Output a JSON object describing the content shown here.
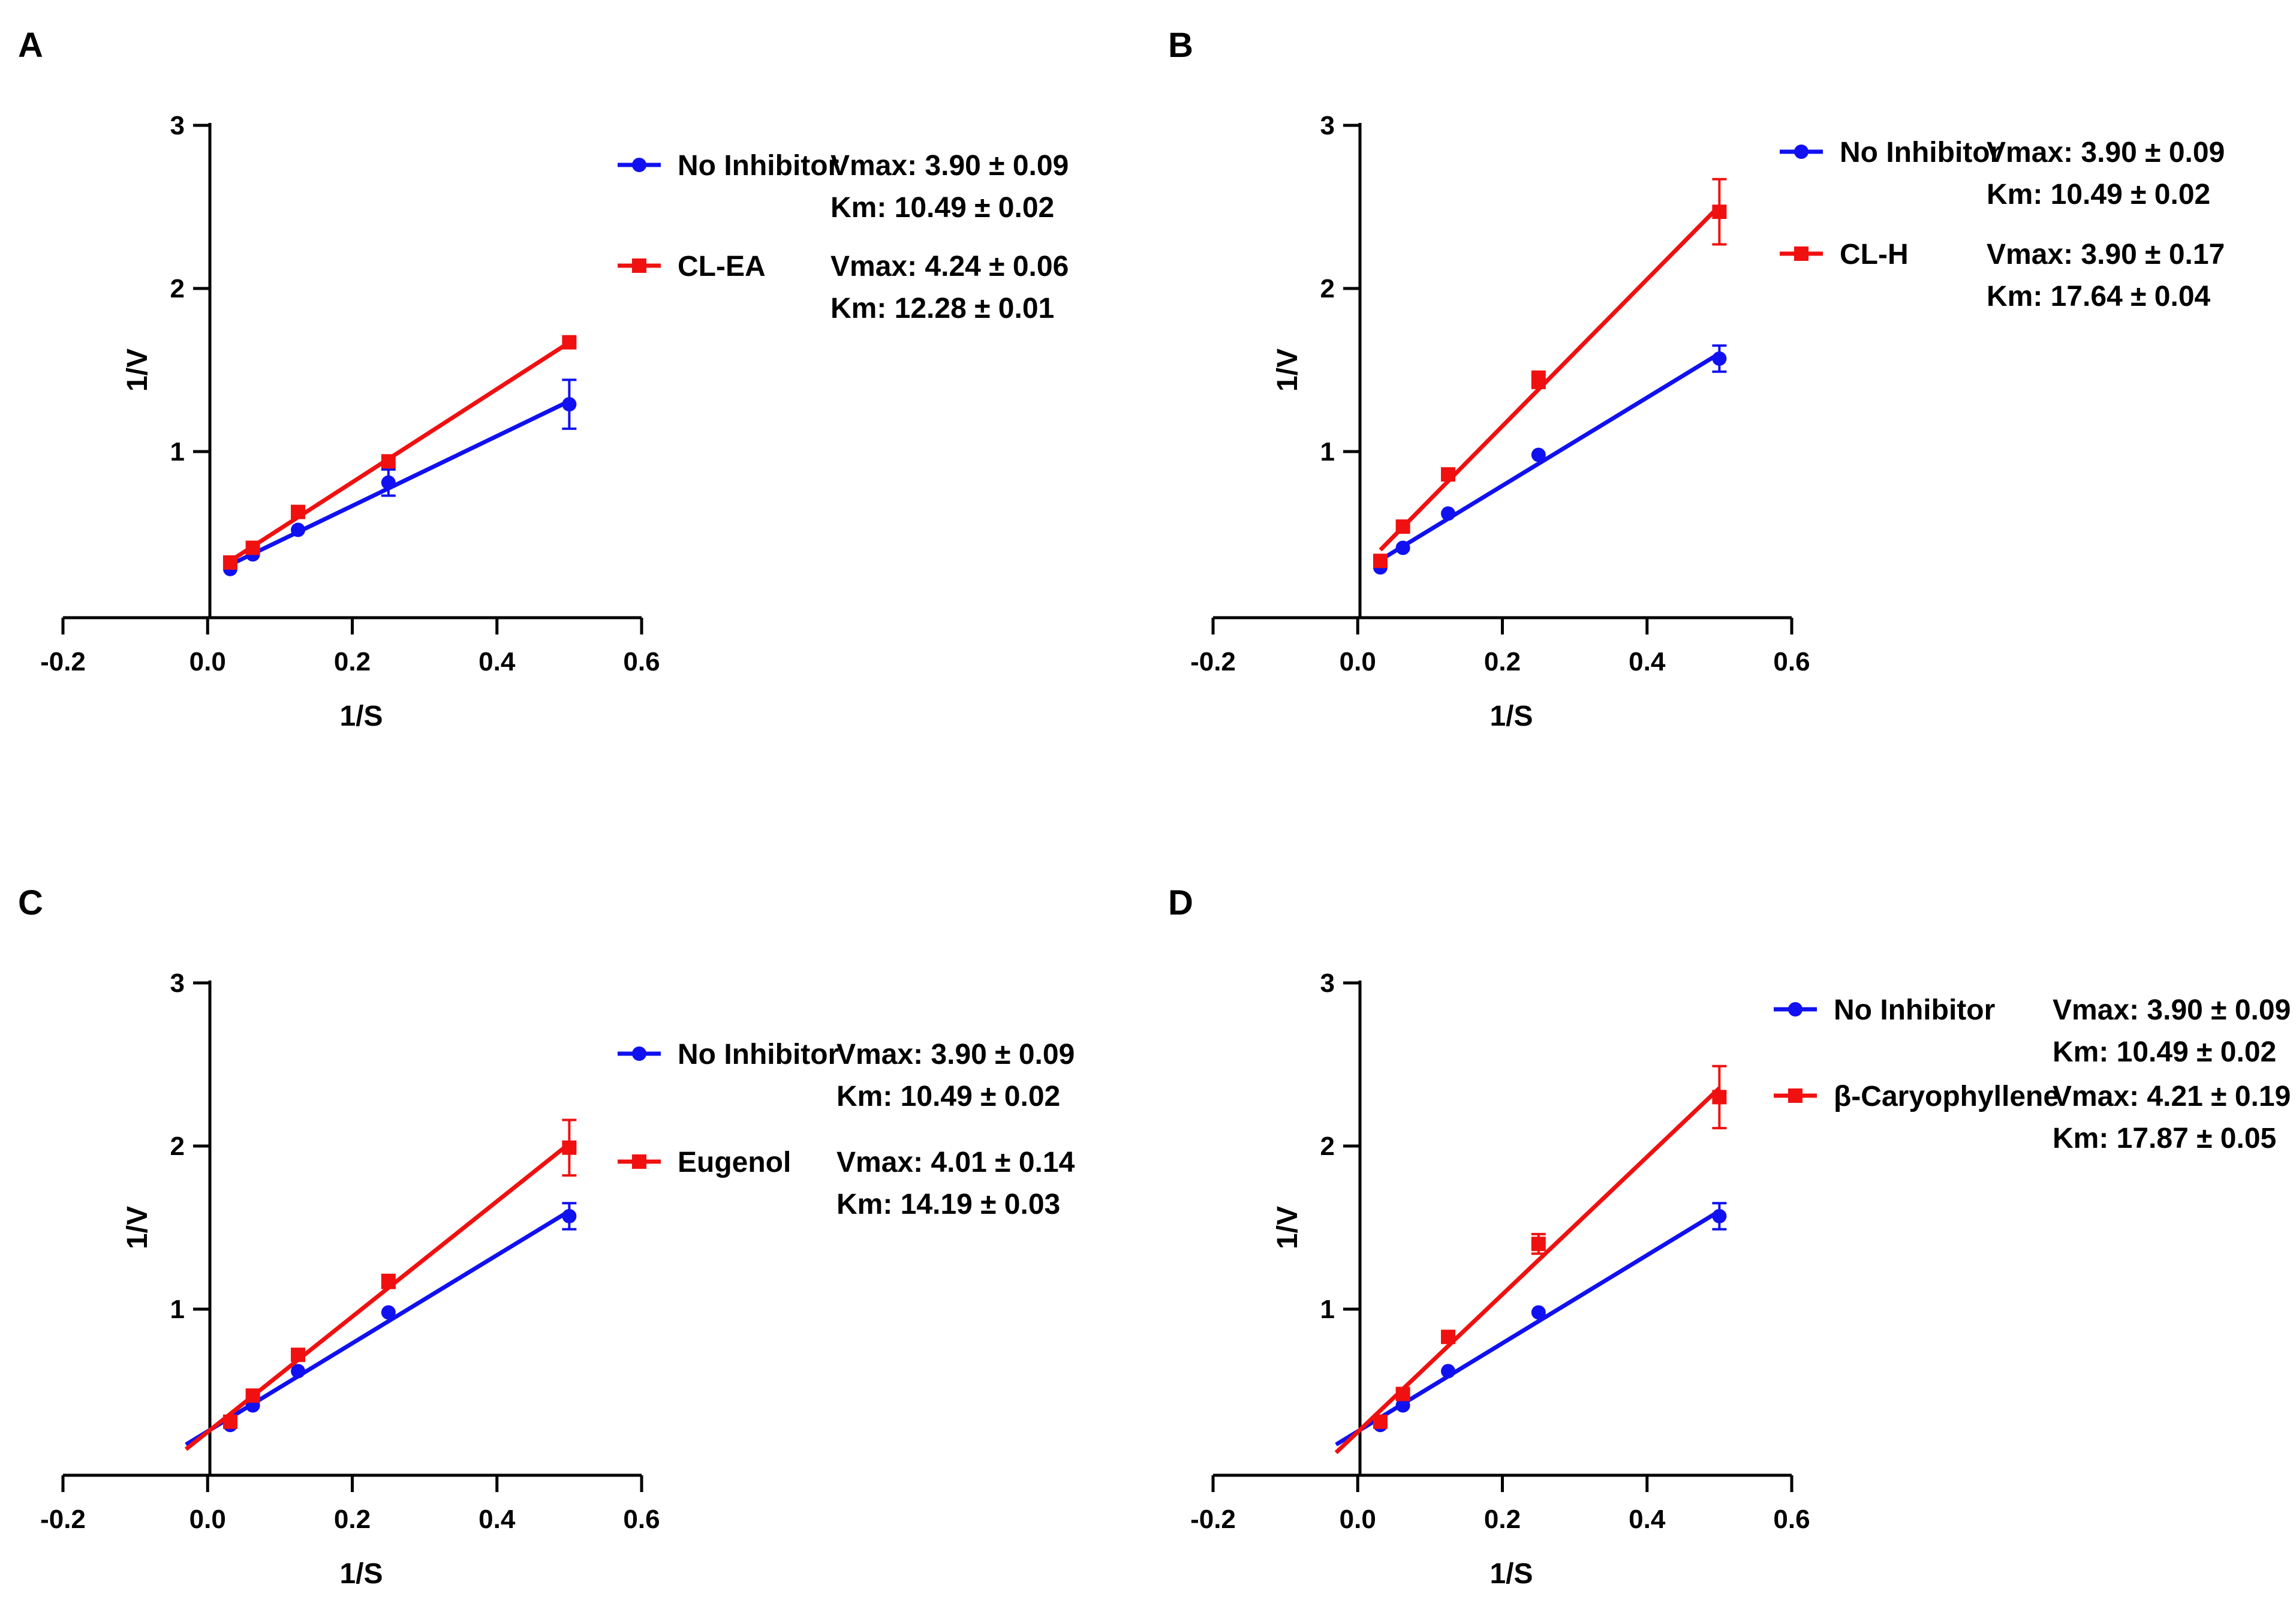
{
  "colors": {
    "no_inhibitor": "#1010f0",
    "inhibitor": "#f01010",
    "axis": "#000000"
  },
  "chart_data": [
    {
      "panel": "A",
      "type": "scatter",
      "xlabel": "1/S",
      "ylabel": "1/V",
      "xlim": [
        -0.2,
        0.6
      ],
      "ylim": [
        0,
        3
      ],
      "xticks": [
        "-0.2",
        "0.0",
        "0.2",
        "0.4",
        "0.6"
      ],
      "yticks": [
        "1",
        "2",
        "3"
      ],
      "series": [
        {
          "name": "No Inhibitor",
          "color_key": "no_inhibitor",
          "marker": "circle",
          "x": [
            0.03125,
            0.0625,
            0.125,
            0.25,
            0.5
          ],
          "y": [
            0.28,
            0.37,
            0.52,
            0.81,
            1.29
          ],
          "err": [
            0.02,
            0.02,
            0.03,
            0.08,
            0.15
          ],
          "fit_x": [
            0.03125,
            0.5
          ],
          "vmax_text": "Vmax: 3.90 ± 0.09",
          "km_text": "Km: 10.49 ± 0.02"
        },
        {
          "name": "CL-EA",
          "color_key": "inhibitor",
          "marker": "square",
          "x": [
            0.03125,
            0.0625,
            0.125,
            0.25,
            0.5
          ],
          "y": [
            0.32,
            0.41,
            0.63,
            0.94,
            1.67
          ],
          "err": [
            0.02,
            0.02,
            0.03,
            0.03,
            0.03
          ],
          "fit_x": [
            0.03125,
            0.5
          ],
          "vmax_text": "Vmax: 4.24 ± 0.06",
          "km_text": "Km: 12.28 ± 0.01"
        }
      ]
    },
    {
      "panel": "B",
      "type": "scatter",
      "xlabel": "1/S",
      "ylabel": "1/V",
      "xlim": [
        -0.2,
        0.6
      ],
      "ylim": [
        0,
        3
      ],
      "xticks": [
        "-0.2",
        "0.0",
        "0.2",
        "0.4",
        "0.6"
      ],
      "yticks": [
        "1",
        "2",
        "3"
      ],
      "series": [
        {
          "name": "No Inhibitor",
          "color_key": "no_inhibitor",
          "marker": "circle",
          "x": [
            0.03125,
            0.0625,
            0.125,
            0.25,
            0.5
          ],
          "y": [
            0.29,
            0.41,
            0.62,
            0.98,
            1.57
          ],
          "err": [
            0.02,
            0.02,
            0.02,
            0.02,
            0.08
          ],
          "fit_x": [
            0.03125,
            0.5
          ],
          "vmax_text": "Vmax: 3.90 ± 0.09",
          "km_text": "Km: 10.49 ± 0.02"
        },
        {
          "name": "CL-H",
          "color_key": "inhibitor",
          "marker": "square",
          "x": [
            0.03125,
            0.0625,
            0.125,
            0.25,
            0.5
          ],
          "y": [
            0.33,
            0.54,
            0.86,
            1.44,
            2.47
          ],
          "err": [
            0.02,
            0.02,
            0.03,
            0.05,
            0.2
          ],
          "fit_x": [
            0.03125,
            0.5
          ],
          "vmax_text": "Vmax: 3.90 ± 0.17",
          "km_text": "Km: 17.64 ± 0.04"
        }
      ]
    },
    {
      "panel": "C",
      "type": "scatter",
      "xlabel": "1/S",
      "ylabel": "1/V",
      "xlim": [
        -0.2,
        0.6
      ],
      "ylim": [
        0,
        3
      ],
      "xticks": [
        "-0.2",
        "0.0",
        "0.2",
        "0.4",
        "0.6"
      ],
      "yticks": [
        "1",
        "2",
        "3"
      ],
      "series": [
        {
          "name": "No Inhibitor",
          "color_key": "no_inhibitor",
          "marker": "circle",
          "x": [
            0.03125,
            0.0625,
            0.125,
            0.25,
            0.5
          ],
          "y": [
            0.29,
            0.41,
            0.62,
            0.98,
            1.57
          ],
          "err": [
            0.02,
            0.02,
            0.02,
            0.02,
            0.08
          ],
          "fit_x": [
            -0.03,
            0.5
          ],
          "vmax_text": "Vmax: 3.90 ± 0.09",
          "km_text": "Km: 10.49 ± 0.02"
        },
        {
          "name": "Eugenol",
          "color_key": "inhibitor",
          "marker": "square",
          "x": [
            0.03125,
            0.0625,
            0.125,
            0.25,
            0.5
          ],
          "y": [
            0.31,
            0.47,
            0.72,
            1.17,
            1.99
          ],
          "err": [
            0.02,
            0.02,
            0.03,
            0.04,
            0.17
          ],
          "fit_x": [
            -0.03,
            0.5
          ],
          "vmax_text": "Vmax: 4.01 ± 0.14",
          "km_text": "Km: 14.19 ± 0.03"
        }
      ]
    },
    {
      "panel": "D",
      "type": "scatter",
      "xlabel": "1/S",
      "ylabel": "1/V",
      "xlim": [
        -0.2,
        0.6
      ],
      "ylim": [
        0,
        3
      ],
      "xticks": [
        "-0.2",
        "0.0",
        "0.2",
        "0.4",
        "0.6"
      ],
      "yticks": [
        "1",
        "2",
        "3"
      ],
      "series": [
        {
          "name": "No Inhibitor",
          "color_key": "no_inhibitor",
          "marker": "circle",
          "x": [
            0.03125,
            0.0625,
            0.125,
            0.25,
            0.5
          ],
          "y": [
            0.29,
            0.41,
            0.62,
            0.98,
            1.57
          ],
          "err": [
            0.02,
            0.02,
            0.02,
            0.02,
            0.08
          ],
          "fit_x": [
            -0.03,
            0.5
          ],
          "vmax_text": "Vmax: 3.90 ± 0.09",
          "km_text": "Km: 10.49 ± 0.02"
        },
        {
          "name": "β-Caryophyllene",
          "color_key": "inhibitor",
          "marker": "square",
          "x": [
            0.03125,
            0.0625,
            0.125,
            0.25,
            0.5
          ],
          "y": [
            0.31,
            0.48,
            0.83,
            1.4,
            2.3
          ],
          "err": [
            0.02,
            0.02,
            0.03,
            0.06,
            0.19
          ],
          "fit_x": [
            -0.03,
            0.5
          ],
          "vmax_text": "Vmax: 4.21 ± 0.19",
          "km_text": "Km: 17.87 ± 0.05"
        }
      ]
    }
  ]
}
